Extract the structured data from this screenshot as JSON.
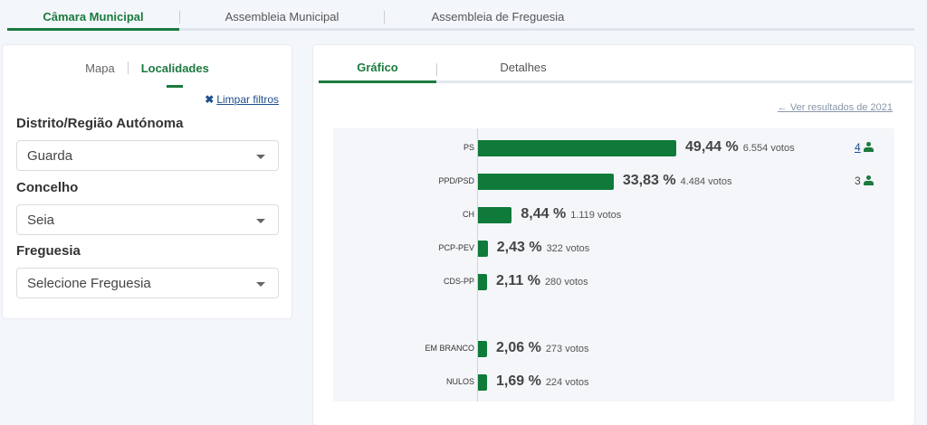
{
  "top_tabs": [
    "Câmara Municipal",
    "Assembleia Municipal",
    "Assembleia de Freguesia"
  ],
  "left": {
    "tabs": [
      "Mapa",
      "Localidades"
    ],
    "clear_filters": "Limpar filtros",
    "fields": [
      {
        "label": "Distrito/Região Autónoma",
        "value": "Guarda"
      },
      {
        "label": "Concelho",
        "value": "Seia"
      },
      {
        "label": "Freguesia",
        "value": "Selecione Freguesia"
      }
    ]
  },
  "right": {
    "tabs": [
      "Gráfico",
      "Detalhes"
    ],
    "previous_link": "Ver resultados de 2021"
  },
  "colors": {
    "accent": "#1b7a3e",
    "bar": "#0f7a3a"
  },
  "chart_data": {
    "type": "bar",
    "orientation": "horizontal",
    "categories": [
      "PS",
      "PPD/PSD",
      "CH",
      "PCP-PEV",
      "CDS-PP",
      "EM BRANCO",
      "NULOS"
    ],
    "values": [
      49.44,
      33.83,
      8.44,
      2.43,
      2.11,
      2.06,
      1.69
    ],
    "labels": [
      "49,44 %",
      "33,83 %",
      "8,44 %",
      "2,43 %",
      "2,11 %",
      "2,06 %",
      "1,69 %"
    ],
    "votes": [
      "6.554 votos",
      "4.484 votos",
      "1.119 votos",
      "322 votos",
      "280 votos",
      "273 votos",
      "224 votos"
    ],
    "seats": [
      "4",
      "3",
      "",
      "",
      "",
      "",
      ""
    ],
    "unit": "%"
  }
}
